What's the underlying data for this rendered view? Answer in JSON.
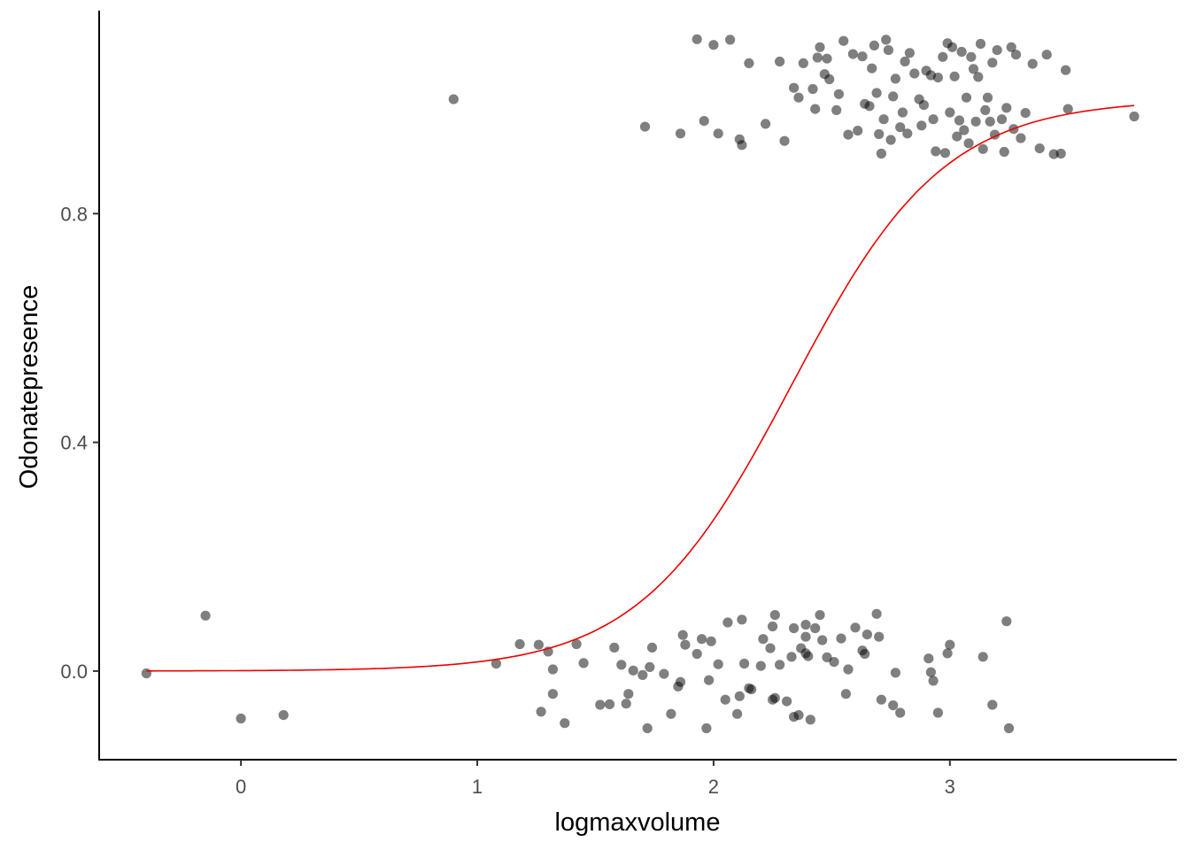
{
  "chart_data": {
    "type": "scatter",
    "xlabel": "logmaxvolume",
    "ylabel": "Odonatepresence",
    "xlim": [
      -0.6,
      3.96
    ],
    "ylim": [
      -0.155,
      1.155
    ],
    "x_ticks": [
      0,
      1,
      2,
      3
    ],
    "x_tick_labels": [
      "0",
      "1",
      "2",
      "3"
    ],
    "y_ticks": [
      0,
      0.4,
      0.8
    ],
    "y_tick_labels": [
      "0.0",
      "0.4",
      "0.8"
    ],
    "grid": false,
    "colors": {
      "points": "#000000",
      "point_alpha": 0.5,
      "fit_line": "#ee0000"
    },
    "points": [
      [
        -0.4,
        -0.004
      ],
      [
        -0.15,
        0.097
      ],
      [
        0.0,
        -0.083
      ],
      [
        0.18,
        -0.077
      ],
      [
        1.08,
        0.013
      ],
      [
        1.18,
        0.047
      ],
      [
        1.26,
        0.046
      ],
      [
        1.27,
        -0.071
      ],
      [
        1.3,
        0.034
      ],
      [
        1.32,
        0.003
      ],
      [
        1.32,
        -0.04
      ],
      [
        1.37,
        -0.091
      ],
      [
        1.42,
        0.047
      ],
      [
        1.45,
        0.014
      ],
      [
        1.52,
        -0.059
      ],
      [
        1.56,
        -0.058
      ],
      [
        1.58,
        0.041
      ],
      [
        1.61,
        0.011
      ],
      [
        1.63,
        -0.057
      ],
      [
        1.64,
        -0.04
      ],
      [
        1.66,
        0.001
      ],
      [
        1.7,
        -0.007
      ],
      [
        1.72,
        -0.1
      ],
      [
        1.73,
        0.007
      ],
      [
        1.74,
        0.041
      ],
      [
        1.79,
        -0.005
      ],
      [
        1.82,
        -0.075
      ],
      [
        1.85,
        -0.027
      ],
      [
        1.86,
        -0.019
      ],
      [
        1.87,
        0.063
      ],
      [
        1.88,
        0.046
      ],
      [
        1.93,
        0.03
      ],
      [
        1.95,
        0.056
      ],
      [
        1.97,
        -0.1
      ],
      [
        1.98,
        -0.016
      ],
      [
        1.99,
        0.052
      ],
      [
        2.02,
        0.012
      ],
      [
        2.05,
        -0.05
      ],
      [
        2.06,
        0.085
      ],
      [
        2.1,
        -0.075
      ],
      [
        2.11,
        -0.044
      ],
      [
        2.12,
        0.09
      ],
      [
        2.13,
        0.013
      ],
      [
        2.15,
        -0.03
      ],
      [
        2.16,
        -0.032
      ],
      [
        2.2,
        0.009
      ],
      [
        2.21,
        0.056
      ],
      [
        2.24,
        0.04
      ],
      [
        2.25,
        -0.05
      ],
      [
        2.26,
        -0.047
      ],
      [
        2.26,
        0.098
      ],
      [
        2.25,
        0.078
      ],
      [
        2.28,
        0.011
      ],
      [
        2.31,
        -0.053
      ],
      [
        2.33,
        0.025
      ],
      [
        2.34,
        -0.08
      ],
      [
        2.34,
        0.075
      ],
      [
        2.36,
        -0.077
      ],
      [
        2.37,
        0.04
      ],
      [
        2.39,
        0.06
      ],
      [
        2.39,
        0.081
      ],
      [
        2.39,
        0.031
      ],
      [
        2.4,
        0.026
      ],
      [
        2.41,
        -0.085
      ],
      [
        2.43,
        0.075
      ],
      [
        2.45,
        0.098
      ],
      [
        2.46,
        0.054
      ],
      [
        2.48,
        0.024
      ],
      [
        2.51,
        0.016
      ],
      [
        2.54,
        0.057
      ],
      [
        2.56,
        -0.04
      ],
      [
        2.57,
        0.003
      ],
      [
        2.6,
        0.076
      ],
      [
        2.63,
        0.036
      ],
      [
        2.64,
        0.03
      ],
      [
        2.65,
        0.064
      ],
      [
        2.69,
        0.1
      ],
      [
        2.7,
        0.06
      ],
      [
        2.71,
        -0.05
      ],
      [
        2.76,
        -0.06
      ],
      [
        2.77,
        -0.003
      ],
      [
        2.79,
        -0.073
      ],
      [
        2.92,
        -0.002
      ],
      [
        2.91,
        0.022
      ],
      [
        2.93,
        -0.017
      ],
      [
        2.95,
        -0.073
      ],
      [
        2.99,
        0.031
      ],
      [
        3.0,
        0.046
      ],
      [
        3.14,
        0.025
      ],
      [
        3.18,
        -0.059
      ],
      [
        3.24,
        0.087
      ],
      [
        3.25,
        -0.1
      ],
      [
        0.9,
        1.0
      ],
      [
        1.71,
        0.952
      ],
      [
        1.86,
        0.94
      ],
      [
        1.93,
        1.105
      ],
      [
        1.96,
        0.962
      ],
      [
        2.0,
        1.095
      ],
      [
        2.02,
        0.94
      ],
      [
        2.07,
        1.104
      ],
      [
        2.11,
        0.93
      ],
      [
        2.12,
        0.92
      ],
      [
        2.15,
        1.063
      ],
      [
        2.22,
        0.957
      ],
      [
        2.28,
        1.066
      ],
      [
        2.3,
        0.927
      ],
      [
        2.34,
        1.02
      ],
      [
        2.36,
        1.003
      ],
      [
        2.38,
        1.063
      ],
      [
        2.42,
        1.018
      ],
      [
        2.43,
        0.983
      ],
      [
        2.44,
        1.073
      ],
      [
        2.45,
        1.091
      ],
      [
        2.47,
        1.044
      ],
      [
        2.48,
        1.071
      ],
      [
        2.49,
        1.035
      ],
      [
        2.52,
        0.981
      ],
      [
        2.53,
        1.009
      ],
      [
        2.55,
        1.102
      ],
      [
        2.57,
        0.938
      ],
      [
        2.59,
        1.079
      ],
      [
        2.61,
        0.945
      ],
      [
        2.63,
        1.075
      ],
      [
        2.64,
        0.992
      ],
      [
        2.66,
        0.988
      ],
      [
        2.67,
        1.054
      ],
      [
        2.68,
        1.094
      ],
      [
        2.69,
        1.011
      ],
      [
        2.7,
        0.939
      ],
      [
        2.71,
        0.905
      ],
      [
        2.72,
        0.965
      ],
      [
        2.73,
        1.104
      ],
      [
        2.74,
        1.086
      ],
      [
        2.75,
        0.929
      ],
      [
        2.76,
        1.005
      ],
      [
        2.77,
        1.036
      ],
      [
        2.79,
        0.951
      ],
      [
        2.8,
        0.977
      ],
      [
        2.81,
        1.066
      ],
      [
        2.82,
        0.94
      ],
      [
        2.83,
        1.081
      ],
      [
        2.85,
        1.045
      ],
      [
        2.87,
        1.0
      ],
      [
        2.88,
        0.954
      ],
      [
        2.89,
        0.99
      ],
      [
        2.9,
        1.05
      ],
      [
        2.92,
        1.042
      ],
      [
        2.93,
        0.965
      ],
      [
        2.94,
        0.909
      ],
      [
        2.95,
        1.038
      ],
      [
        2.97,
        1.074
      ],
      [
        2.98,
        0.906
      ],
      [
        2.99,
        1.098
      ],
      [
        3.0,
        0.977
      ],
      [
        3.01,
        1.091
      ],
      [
        3.02,
        1.04
      ],
      [
        3.03,
        0.935
      ],
      [
        3.04,
        0.963
      ],
      [
        3.05,
        1.083
      ],
      [
        3.06,
        0.946
      ],
      [
        3.07,
        1.003
      ],
      [
        3.08,
        0.923
      ],
      [
        3.09,
        1.074
      ],
      [
        3.1,
        1.053
      ],
      [
        3.11,
        0.961
      ],
      [
        3.12,
        1.039
      ],
      [
        3.13,
        1.097
      ],
      [
        3.14,
        0.913
      ],
      [
        3.15,
        0.981
      ],
      [
        3.16,
        1.003
      ],
      [
        3.17,
        0.961
      ],
      [
        3.18,
        1.064
      ],
      [
        3.19,
        0.938
      ],
      [
        3.2,
        1.086
      ],
      [
        3.22,
        0.965
      ],
      [
        3.23,
        0.908
      ],
      [
        3.24,
        0.985
      ],
      [
        3.26,
        1.091
      ],
      [
        3.27,
        0.948
      ],
      [
        3.28,
        1.078
      ],
      [
        3.3,
        0.932
      ],
      [
        3.32,
        0.976
      ],
      [
        3.35,
        1.062
      ],
      [
        3.38,
        0.914
      ],
      [
        3.41,
        1.078
      ],
      [
        3.44,
        0.904
      ],
      [
        3.47,
        0.905
      ],
      [
        3.49,
        1.051
      ],
      [
        3.5,
        0.983
      ],
      [
        3.78,
        0.97
      ]
    ]
  }
}
